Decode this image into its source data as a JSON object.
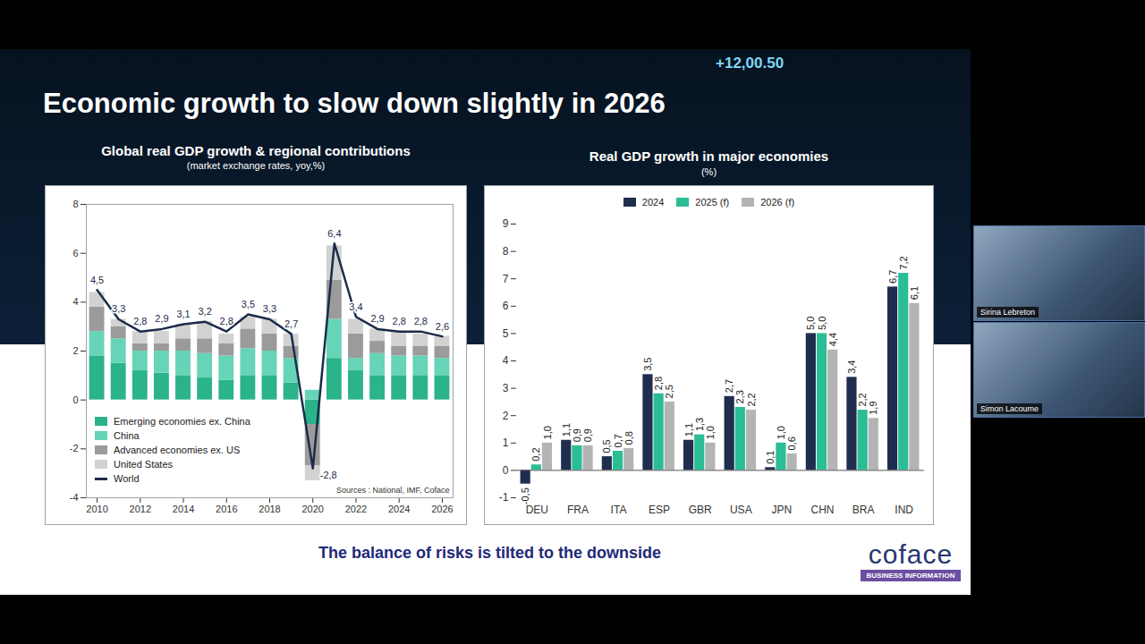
{
  "slide": {
    "title": "Economic growth to slow down slightly in 2026",
    "ticker": "+12,00.50",
    "footer": "The balance of risks is tilted to the downside",
    "logo": "coface",
    "logo_subtitle": "BUSINESS INFORMATION",
    "participants": [
      "Sirina Lebreton",
      "Simon Lacoume"
    ]
  },
  "chart_data": [
    {
      "type": "bar",
      "title": "Global real GDP growth & regional contributions",
      "subtitle": "(market exchange rates, yoy,%)",
      "source": "Sources : National, IMF, Coface",
      "stacked": true,
      "data_labels": true,
      "grid": false,
      "legend": "bottom-left",
      "x": [
        2010,
        2011,
        2012,
        2013,
        2014,
        2015,
        2016,
        2017,
        2018,
        2019,
        2020,
        2021,
        2022,
        2023,
        2024,
        2025,
        2026
      ],
      "series": [
        {
          "name": "Emerging economies ex. China",
          "color": "#2bb38a",
          "values": [
            1.8,
            1.5,
            1.2,
            1.1,
            1.0,
            0.9,
            0.8,
            1.0,
            1.0,
            0.7,
            -1.0,
            1.7,
            1.2,
            1.0,
            1.0,
            1.0,
            1.0
          ]
        },
        {
          "name": "China",
          "color": "#66d4b6",
          "values": [
            1.0,
            1.0,
            0.8,
            0.9,
            1.0,
            1.0,
            1.0,
            1.1,
            1.0,
            1.0,
            0.4,
            1.6,
            0.5,
            0.9,
            0.8,
            0.8,
            0.7
          ]
        },
        {
          "name": "Advanced economies ex. US",
          "color": "#9b9b9b",
          "values": [
            1.0,
            0.5,
            0.3,
            0.3,
            0.5,
            0.6,
            0.5,
            0.8,
            0.7,
            0.5,
            -1.7,
            1.6,
            1.0,
            0.5,
            0.4,
            0.4,
            0.5
          ]
        },
        {
          "name": "United States",
          "color": "#d2d2d2",
          "values": [
            0.6,
            0.3,
            0.5,
            0.5,
            0.6,
            0.7,
            0.4,
            0.5,
            0.6,
            0.5,
            -0.6,
            1.4,
            0.6,
            0.5,
            0.6,
            0.5,
            0.4
          ]
        },
        {
          "name": "World",
          "type": "line",
          "color": "#1c2b4a",
          "values": [
            4.5,
            3.3,
            2.8,
            2.9,
            3.1,
            3.2,
            2.8,
            3.5,
            3.3,
            2.7,
            -2.8,
            6.4,
            3.4,
            2.9,
            2.8,
            2.8,
            2.6
          ],
          "value_labels": [
            "4,5",
            "3,3",
            "2,8",
            "2,9",
            "3,1",
            "3,2",
            "2,8",
            "3,5",
            "3,3",
            "2,7",
            "-2,8",
            "6,4",
            "3,4",
            "2,9",
            "2,8",
            "2,8",
            "2,6"
          ]
        }
      ],
      "xlim": [
        2009.5,
        2026.5
      ],
      "xticks": [
        2010,
        2012,
        2014,
        2016,
        2018,
        2020,
        2022,
        2024,
        2026
      ],
      "ylim": [
        -4,
        8
      ],
      "yticks": [
        -4,
        -2,
        0,
        2,
        4,
        6,
        8
      ]
    },
    {
      "type": "bar",
      "title": "Real GDP growth in major economies",
      "subtitle": "(%)",
      "data_labels": true,
      "grid": false,
      "legend": "top",
      "categories": [
        "DEU",
        "FRA",
        "ITA",
        "ESP",
        "GBR",
        "USA",
        "JPN",
        "CHN",
        "BRA",
        "IND"
      ],
      "series": [
        {
          "name": "2024",
          "color": "#1f2d4f",
          "values": [
            -0.5,
            1.1,
            0.5,
            3.5,
            1.1,
            2.7,
            0.1,
            5.0,
            3.4,
            6.7
          ],
          "value_labels": [
            "-0,5",
            "1,1",
            "0,5",
            "3,5",
            "1,1",
            "2,7",
            "0,1",
            "5,0",
            "3,4",
            "6,7"
          ]
        },
        {
          "name": "2025 (f)",
          "color": "#2bbd96",
          "values": [
            0.2,
            0.9,
            0.7,
            2.8,
            1.3,
            2.3,
            1.0,
            5.0,
            2.2,
            7.2
          ],
          "value_labels": [
            "0,2",
            "0,9",
            "0,7",
            "2,8",
            "1,3",
            "2,3",
            "1,0",
            "5,0",
            "2,2",
            "7,2"
          ]
        },
        {
          "name": "2026 (f)",
          "color": "#b4b4b4",
          "values": [
            1.0,
            0.9,
            0.8,
            2.5,
            1.0,
            2.2,
            0.6,
            4.4,
            1.9,
            6.1
          ],
          "value_labels": [
            "1,0",
            "0,9",
            "0,8",
            "2,5",
            "1,0",
            "2,2",
            "0,6",
            "4,4",
            "1,9",
            "6,1"
          ]
        }
      ],
      "ylim": [
        -1,
        9
      ],
      "yticks": [
        -1,
        0,
        1,
        2,
        3,
        4,
        5,
        6,
        7,
        8,
        9
      ]
    }
  ]
}
